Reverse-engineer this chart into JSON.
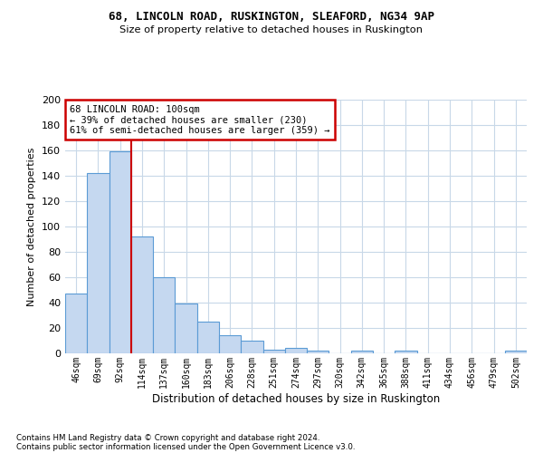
{
  "title1": "68, LINCOLN ROAD, RUSKINGTON, SLEAFORD, NG34 9AP",
  "title2": "Size of property relative to detached houses in Ruskington",
  "xlabel": "Distribution of detached houses by size in Ruskington",
  "ylabel": "Number of detached properties",
  "categories": [
    "46sqm",
    "69sqm",
    "92sqm",
    "114sqm",
    "137sqm",
    "160sqm",
    "183sqm",
    "206sqm",
    "228sqm",
    "251sqm",
    "274sqm",
    "297sqm",
    "320sqm",
    "342sqm",
    "365sqm",
    "388sqm",
    "411sqm",
    "434sqm",
    "456sqm",
    "479sqm",
    "502sqm"
  ],
  "values": [
    47,
    142,
    159,
    92,
    60,
    39,
    25,
    14,
    10,
    3,
    4,
    2,
    0,
    2,
    0,
    2,
    0,
    0,
    0,
    0,
    2
  ],
  "bar_color": "#c5d8f0",
  "bar_edge_color": "#5b9bd5",
  "red_line_x": 2.5,
  "annotation_text": "68 LINCOLN ROAD: 100sqm\n← 39% of detached houses are smaller (230)\n61% of semi-detached houses are larger (359) →",
  "annotation_box_color": "#ffffff",
  "annotation_box_edge": "#cc0000",
  "red_line_color": "#cc0000",
  "ylim": [
    0,
    200
  ],
  "yticks": [
    0,
    20,
    40,
    60,
    80,
    100,
    120,
    140,
    160,
    180,
    200
  ],
  "footnote1": "Contains HM Land Registry data © Crown copyright and database right 2024.",
  "footnote2": "Contains public sector information licensed under the Open Government Licence v3.0.",
  "bg_color": "#ffffff",
  "grid_color": "#c8d8e8"
}
